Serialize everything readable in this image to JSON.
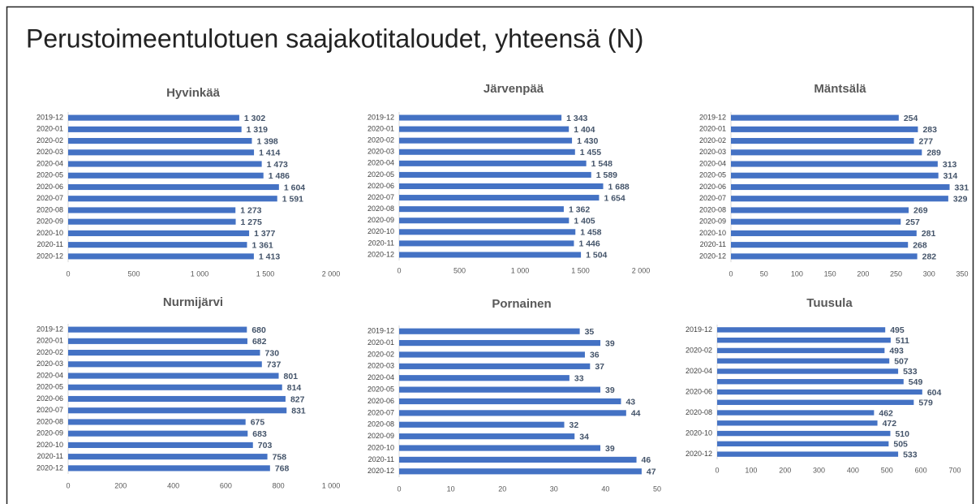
{
  "title": "Perustoimeentulotuen saajakotitaloudet, yhteensä (N)",
  "chart_data": [
    {
      "type": "bar",
      "orientation": "horizontal",
      "title": "Hyvinkää",
      "color": "#4472c4",
      "categories": [
        "2019-12",
        "2020-01",
        "2020-02",
        "2020-03",
        "2020-04",
        "2020-05",
        "2020-06",
        "2020-07",
        "2020-08",
        "2020-09",
        "2020-10",
        "2020-11",
        "2020-12"
      ],
      "values": [
        1302,
        1319,
        1398,
        1414,
        1473,
        1486,
        1604,
        1591,
        1273,
        1275,
        1377,
        1361,
        1413
      ],
      "value_labels": [
        "1 302",
        "1 319",
        "1 398",
        "1 414",
        "1 473",
        "1 486",
        "1 604",
        "1 591",
        "1 273",
        "1 275",
        "1 377",
        "1 361",
        "1 413"
      ],
      "xlim": [
        0,
        2000
      ],
      "xticks": [
        0,
        500,
        {
          "value": 1000,
          "label": "1 000"
        },
        {
          "value": 1500,
          "label": "1 500"
        },
        {
          "value": 2000,
          "label": "2 000"
        }
      ]
    },
    {
      "type": "bar",
      "orientation": "horizontal",
      "title": "Järvenpää",
      "color": "#4472c4",
      "categories": [
        "2019-12",
        "2020-01",
        "2020-02",
        "2020-03",
        "2020-04",
        "2020-05",
        "2020-06",
        "2020-07",
        "2020-08",
        "2020-09",
        "2020-10",
        "2020-11",
        "2020-12"
      ],
      "values": [
        1343,
        1404,
        1430,
        1455,
        1548,
        1589,
        1688,
        1654,
        1362,
        1405,
        1458,
        1446,
        1504
      ],
      "value_labels": [
        "1 343",
        "1 404",
        "1 430",
        "1 455",
        "1 548",
        "1 589",
        "1 688",
        "1 654",
        "1 362",
        "1 405",
        "1 458",
        "1 446",
        "1 504"
      ],
      "xlim": [
        0,
        2000
      ],
      "xticks": [
        0,
        500,
        {
          "value": 1000,
          "label": "1 000"
        },
        {
          "value": 1500,
          "label": "1 500"
        },
        {
          "value": 2000,
          "label": "2 000"
        }
      ]
    },
    {
      "type": "bar",
      "orientation": "horizontal",
      "title": "Mäntsälä",
      "color": "#4472c4",
      "categories": [
        "2019-12",
        "2020-01",
        "2020-02",
        "2020-03",
        "2020-04",
        "2020-05",
        "2020-06",
        "2020-07",
        "2020-08",
        "2020-09",
        "2020-10",
        "2020-11",
        "2020-12"
      ],
      "values": [
        254,
        283,
        277,
        289,
        313,
        314,
        331,
        329,
        269,
        257,
        281,
        268,
        282
      ],
      "xlim": [
        0,
        350
      ],
      "xticks": [
        0,
        50,
        100,
        150,
        200,
        250,
        300,
        350
      ]
    },
    {
      "type": "bar",
      "orientation": "horizontal",
      "title": "Nurmijärvi",
      "color": "#4472c4",
      "categories": [
        "2019-12",
        "2020-01",
        "2020-02",
        "2020-03",
        "2020-04",
        "2020-05",
        "2020-06",
        "2020-07",
        "2020-08",
        "2020-09",
        "2020-10",
        "2020-11",
        "2020-12"
      ],
      "values": [
        680,
        682,
        730,
        737,
        801,
        814,
        827,
        831,
        675,
        683,
        703,
        758,
        768
      ],
      "xlim": [
        0,
        1000
      ],
      "xticks": [
        0,
        200,
        400,
        600,
        800,
        {
          "value": 1000,
          "label": "1 000"
        }
      ]
    },
    {
      "type": "bar",
      "orientation": "horizontal",
      "title": "Pornainen",
      "color": "#4472c4",
      "categories": [
        "2019-12",
        "2020-01",
        "2020-02",
        "2020-03",
        "2020-04",
        "2020-05",
        "2020-06",
        "2020-07",
        "2020-08",
        "2020-09",
        "2020-10",
        "2020-11",
        "2020-12"
      ],
      "values": [
        35,
        39,
        36,
        37,
        33,
        39,
        43,
        44,
        32,
        34,
        39,
        46,
        47
      ],
      "xlim": [
        0,
        50
      ],
      "xticks": [
        0,
        10,
        20,
        30,
        40,
        50
      ]
    },
    {
      "type": "bar",
      "orientation": "horizontal",
      "title": "Tuusula",
      "color": "#4472c4",
      "categories": [
        "2019-12",
        null,
        "2020-02",
        null,
        "2020-04",
        null,
        "2020-06",
        null,
        "2020-08",
        null,
        "2020-10",
        null,
        "2020-12"
      ],
      "values": [
        495,
        511,
        493,
        507,
        533,
        549,
        604,
        579,
        462,
        472,
        510,
        505,
        533
      ],
      "xlim": [
        0,
        700
      ],
      "xticks": [
        0,
        100,
        200,
        300,
        400,
        500,
        600,
        700
      ]
    }
  ]
}
